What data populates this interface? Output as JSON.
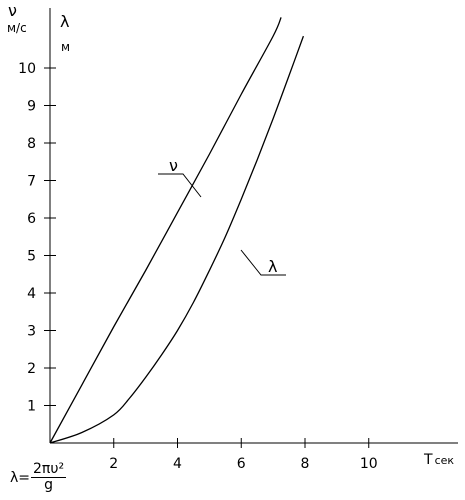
{
  "chart_data": {
    "type": "line",
    "y_axis_symbols": [
      {
        "symbol": "ν",
        "unit": "м/с"
      },
      {
        "symbol": "λ",
        "unit": "м"
      }
    ],
    "xlabel": "Т",
    "xlabel_unit": "сек",
    "x_ticks": [
      2,
      4,
      6,
      8,
      10
    ],
    "y_ticks": [
      1,
      2,
      3,
      4,
      5,
      6,
      7,
      8,
      9,
      10
    ],
    "xlim": [
      0,
      12.8
    ],
    "ylim": [
      0,
      11.6
    ],
    "grid": false,
    "series": [
      {
        "name": "ν",
        "x": [
          0,
          1,
          2,
          3,
          4,
          5,
          6,
          7,
          7.25
        ],
        "y": [
          0,
          1.55,
          3.1,
          4.6,
          6.15,
          7.7,
          9.3,
          10.85,
          11.35
        ]
      },
      {
        "name": "λ",
        "x": [
          0,
          1,
          2,
          2.5,
          3,
          3.5,
          4,
          4.5,
          5,
          5.5,
          6,
          6.5,
          7,
          7.5,
          7.95
        ],
        "y": [
          0,
          0.28,
          0.75,
          1.2,
          1.75,
          2.35,
          3.0,
          3.75,
          4.6,
          5.5,
          6.5,
          7.55,
          8.65,
          9.8,
          10.85
        ]
      }
    ],
    "formula": {
      "lhs": "λ=",
      "numerator": "2πυ²",
      "denominator": "g"
    }
  }
}
